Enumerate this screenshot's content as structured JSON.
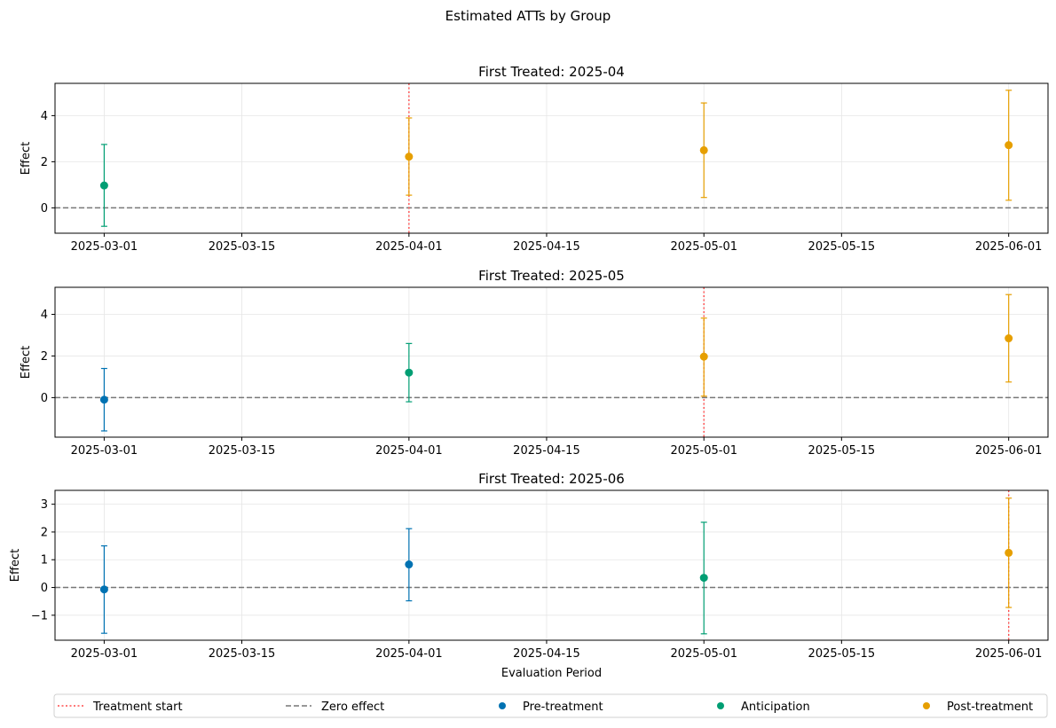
{
  "suptitle": "Estimated ATTs by Group",
  "legend_placement": "bottom",
  "legend": [
    {
      "label": "Treatment start",
      "kind": "dotted-line",
      "color": "#ff4d4d"
    },
    {
      "label": "Zero effect",
      "kind": "dashed-line",
      "color": "#777777"
    },
    {
      "label": "Pre-treatment",
      "kind": "marker",
      "color": "#0072b2"
    },
    {
      "label": "Anticipation",
      "kind": "marker",
      "color": "#009e73"
    },
    {
      "label": "Post-treatment",
      "kind": "marker",
      "color": "#e69f00"
    }
  ],
  "chart_data": [
    {
      "type": "scatter",
      "title": "First Treated: 2025-04",
      "xlabel": "",
      "ylabel": "Effect",
      "treatment_start": "2025-04-01",
      "zero_line": 0,
      "grid": true,
      "ylim": [
        -1.1,
        5.4
      ],
      "yticks": [
        0,
        2,
        4
      ],
      "xlim": [
        "2025-02-24",
        "2025-06-05"
      ],
      "xticks": [
        "2025-03-01",
        "2025-03-15",
        "2025-04-01",
        "2025-04-15",
        "2025-05-01",
        "2025-05-15",
        "2025-06-01"
      ],
      "points": [
        {
          "x": "2025-03-01",
          "y": 0.97,
          "lower": -0.8,
          "upper": 2.75,
          "category": "Anticipation"
        },
        {
          "x": "2025-04-01",
          "y": 2.22,
          "lower": 0.55,
          "upper": 3.9,
          "category": "Post-treatment"
        },
        {
          "x": "2025-05-01",
          "y": 2.5,
          "lower": 0.45,
          "upper": 4.55,
          "category": "Post-treatment"
        },
        {
          "x": "2025-06-01",
          "y": 2.72,
          "lower": 0.33,
          "upper": 5.1,
          "category": "Post-treatment"
        }
      ]
    },
    {
      "type": "scatter",
      "title": "First Treated: 2025-05",
      "xlabel": "",
      "ylabel": "Effect",
      "treatment_start": "2025-05-01",
      "zero_line": 0,
      "grid": true,
      "ylim": [
        -1.9,
        5.3
      ],
      "yticks": [
        0,
        2,
        4
      ],
      "xlim": [
        "2025-02-24",
        "2025-06-05"
      ],
      "xticks": [
        "2025-03-01",
        "2025-03-15",
        "2025-04-01",
        "2025-04-15",
        "2025-05-01",
        "2025-05-15",
        "2025-06-01"
      ],
      "points": [
        {
          "x": "2025-03-01",
          "y": -0.1,
          "lower": -1.6,
          "upper": 1.4,
          "category": "Pre-treatment"
        },
        {
          "x": "2025-04-01",
          "y": 1.2,
          "lower": -0.2,
          "upper": 2.6,
          "category": "Anticipation"
        },
        {
          "x": "2025-05-01",
          "y": 1.97,
          "lower": 0.07,
          "upper": 3.82,
          "category": "Post-treatment"
        },
        {
          "x": "2025-06-01",
          "y": 2.85,
          "lower": 0.75,
          "upper": 4.95,
          "category": "Post-treatment"
        }
      ]
    },
    {
      "type": "scatter",
      "title": "First Treated: 2025-06",
      "xlabel": "Evaluation Period",
      "ylabel": "Effect",
      "treatment_start": "2025-06-01",
      "zero_line": 0,
      "grid": true,
      "ylim": [
        -1.9,
        3.5
      ],
      "yticks": [
        -1,
        0,
        1,
        2,
        3
      ],
      "xlim": [
        "2025-02-24",
        "2025-06-05"
      ],
      "xticks": [
        "2025-03-01",
        "2025-03-15",
        "2025-04-01",
        "2025-04-15",
        "2025-05-01",
        "2025-05-15",
        "2025-06-01"
      ],
      "points": [
        {
          "x": "2025-03-01",
          "y": -0.07,
          "lower": -1.65,
          "upper": 1.5,
          "category": "Pre-treatment"
        },
        {
          "x": "2025-04-01",
          "y": 0.83,
          "lower": -0.48,
          "upper": 2.12,
          "category": "Pre-treatment"
        },
        {
          "x": "2025-05-01",
          "y": 0.35,
          "lower": -1.67,
          "upper": 2.35,
          "category": "Anticipation"
        },
        {
          "x": "2025-06-01",
          "y": 1.25,
          "lower": -0.72,
          "upper": 3.22,
          "category": "Post-treatment"
        }
      ]
    }
  ]
}
